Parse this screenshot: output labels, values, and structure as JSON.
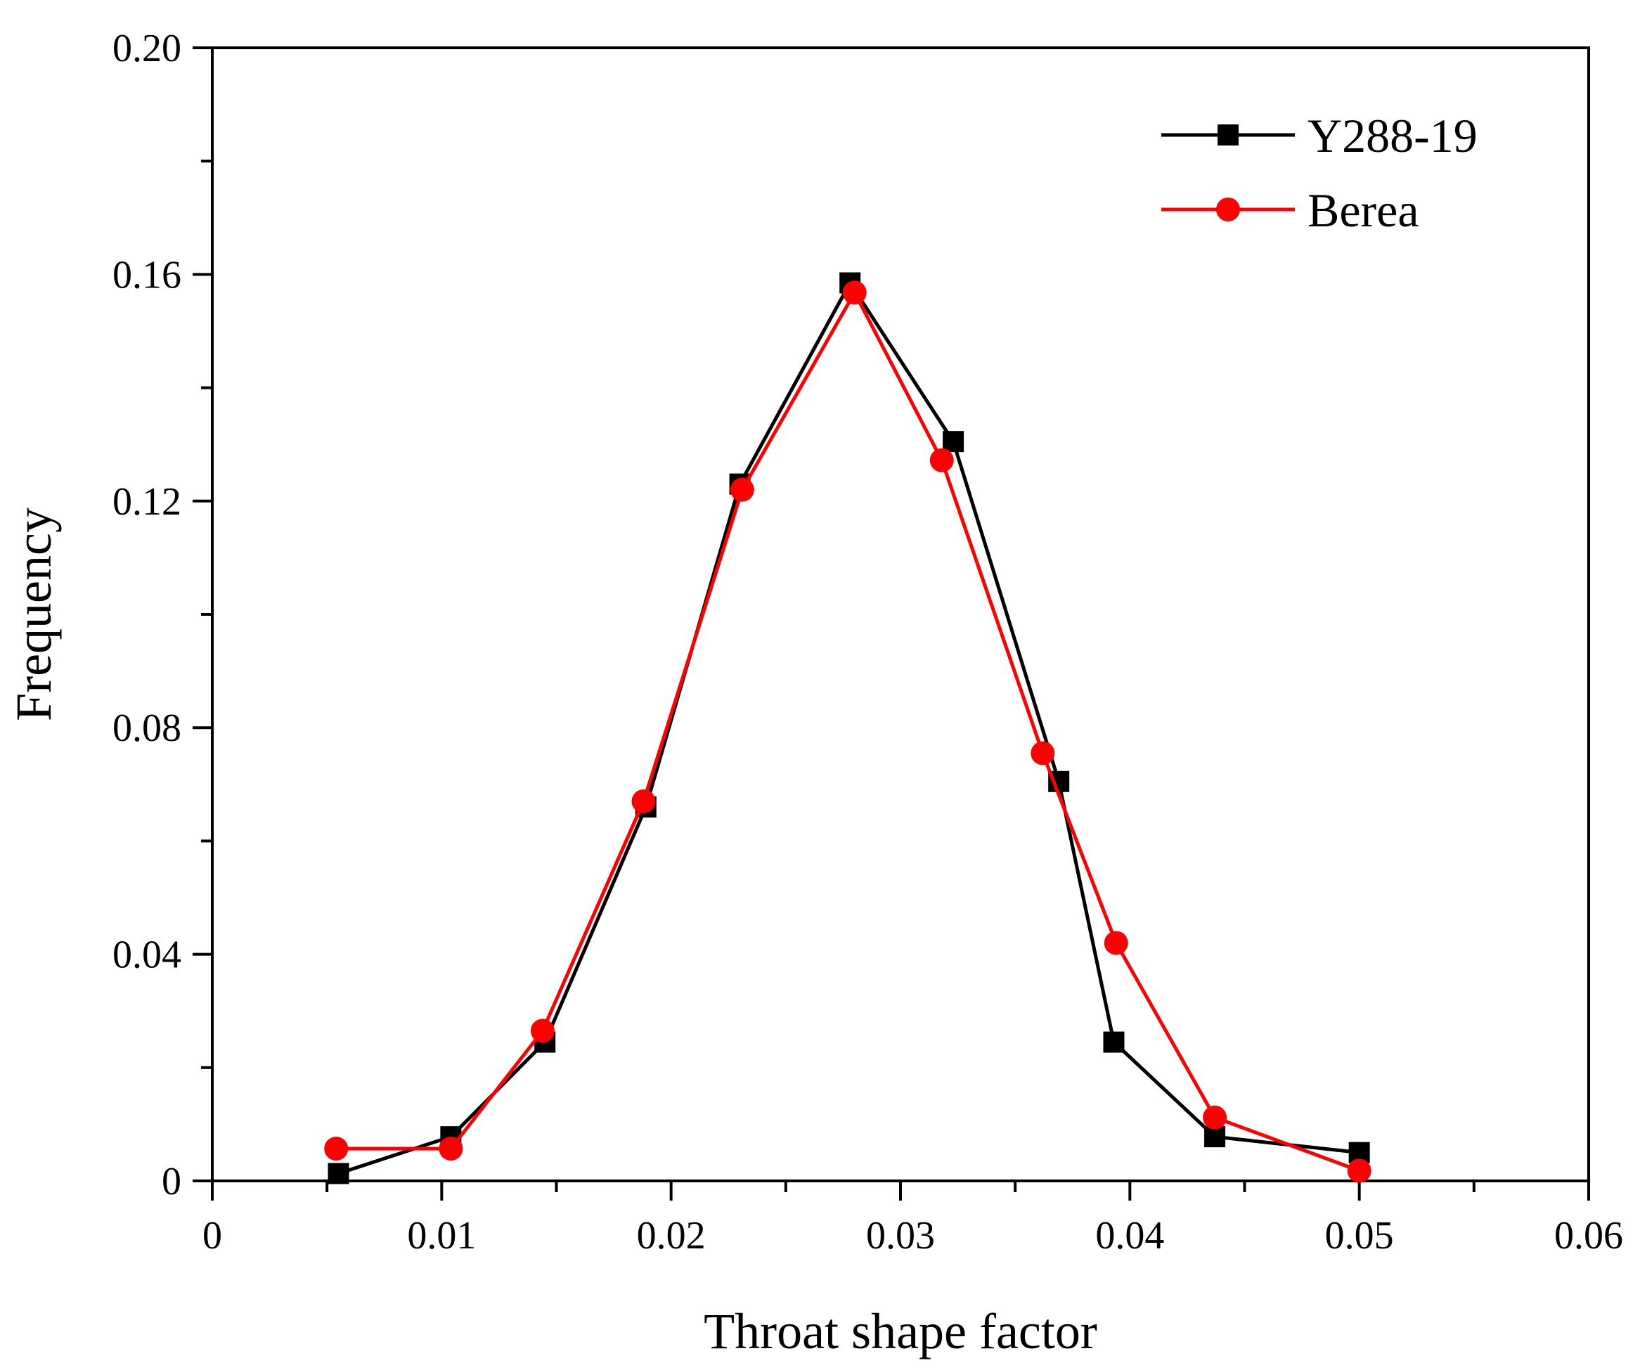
{
  "chart_data": {
    "type": "line",
    "title": "",
    "xlabel": "Throat shape factor",
    "ylabel": "Frequency",
    "xlim": [
      0,
      0.06
    ],
    "ylim": [
      0,
      0.2
    ],
    "x_ticks": [
      0,
      0.01,
      0.02,
      0.03,
      0.04,
      0.05,
      0.06
    ],
    "x_tick_labels": [
      "0",
      "0.01",
      "0.02",
      "0.03",
      "0.04",
      "0.05",
      "0.06"
    ],
    "y_ticks": [
      0,
      0.04,
      0.08,
      0.12,
      0.16,
      0.2
    ],
    "y_tick_labels": [
      "0",
      "0.04",
      "0.08",
      "0.12",
      "0.16",
      "0.20"
    ],
    "grid": false,
    "legend_position": "top-right",
    "series": [
      {
        "name": "Y288-19",
        "color": "#000000",
        "marker": "square",
        "x": [
          0.0055,
          0.0104,
          0.0145,
          0.0189,
          0.023,
          0.0278,
          0.0323,
          0.0369,
          0.0393,
          0.0437,
          0.05
        ],
        "y": [
          0.0013,
          0.0078,
          0.0245,
          0.066,
          0.123,
          0.1585,
          0.1305,
          0.0705,
          0.0245,
          0.0078,
          0.005
        ]
      },
      {
        "name": "Berea",
        "color": "#ff0000",
        "marker": "circle",
        "x": [
          0.0054,
          0.0104,
          0.0144,
          0.0188,
          0.0231,
          0.028,
          0.0318,
          0.0362,
          0.0394,
          0.0437,
          0.05
        ],
        "y": [
          0.0057,
          0.0057,
          0.0265,
          0.067,
          0.122,
          0.1568,
          0.1272,
          0.0755,
          0.042,
          0.0112,
          0.0018
        ]
      }
    ]
  }
}
